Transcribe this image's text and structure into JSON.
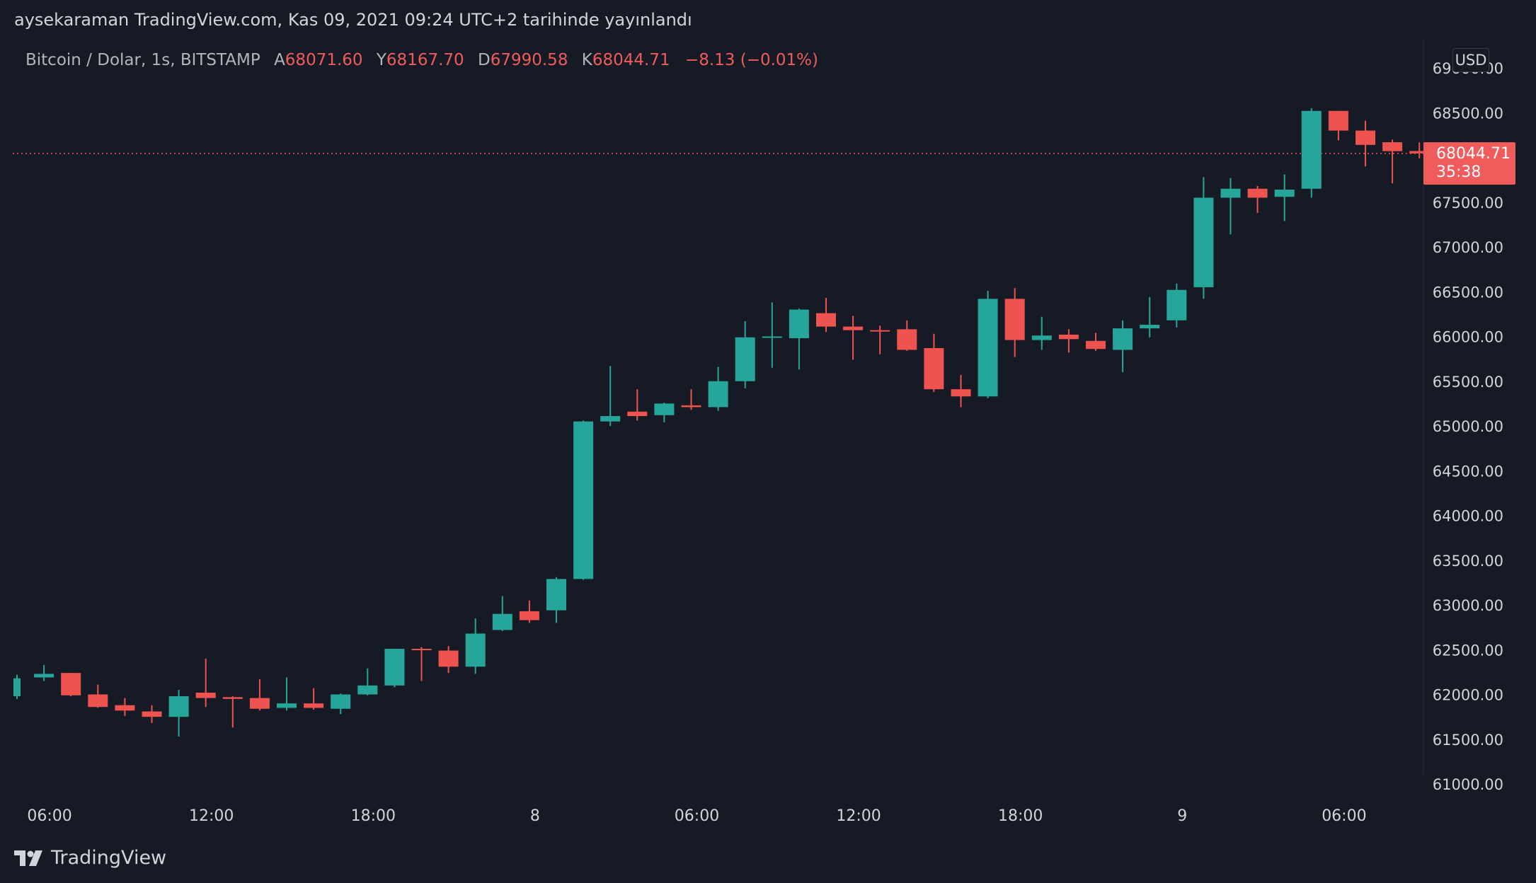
{
  "header": {
    "publish_line": "aysekaraman TradingView.com, Kas 09, 2021 09:24 UTC+2 tarihinde yayınlandı"
  },
  "legend": {
    "symbol": "Bitcoin / Dolar, 1s, BITSTAMP",
    "open_label": "A",
    "open_value": "68071.60",
    "high_label": "Y",
    "high_value": "68167.70",
    "low_label": "D",
    "low_value": "67990.58",
    "close_label": "K",
    "close_value": "68044.71",
    "change": "−8.13 (−0.01%)"
  },
  "price_axis": {
    "currency": "USD",
    "last_price": "68044.71",
    "countdown": "35:38"
  },
  "footer": {
    "brand": "TradingView"
  },
  "colors": {
    "up": "#26a69a",
    "down": "#ef5350",
    "background": "#161a25"
  },
  "chart_data": {
    "type": "candlestick",
    "ylim": [
      61000,
      69000
    ],
    "yticks": [
      "61000.00",
      "61500.00",
      "62000.00",
      "62500.00",
      "63000.00",
      "63500.00",
      "64000.00",
      "64500.00",
      "65000.00",
      "65500.00",
      "66000.00",
      "66500.00",
      "67000.00",
      "67500.00",
      "68000.00",
      "68500.00",
      "69000.00"
    ],
    "xticks": [
      {
        "label": "06:00",
        "index": 1
      },
      {
        "label": "12:00",
        "index": 7
      },
      {
        "label": "18:00",
        "index": 13
      },
      {
        "label": "8",
        "index": 19
      },
      {
        "label": "06:00",
        "index": 25
      },
      {
        "label": "12:00",
        "index": 31
      },
      {
        "label": "18:00",
        "index": 37
      },
      {
        "label": "9",
        "index": 43
      },
      {
        "label": "06:00",
        "index": 49
      }
    ],
    "last_price": 68044.71,
    "candles": [
      {
        "o": 61980,
        "h": 62220,
        "l": 61950,
        "c": 62180
      },
      {
        "o": 62190,
        "h": 62330,
        "l": 62150,
        "c": 62230
      },
      {
        "o": 62240,
        "h": 62240,
        "l": 61980,
        "c": 61990
      },
      {
        "o": 62000,
        "h": 62110,
        "l": 61850,
        "c": 61860
      },
      {
        "o": 61880,
        "h": 61960,
        "l": 61760,
        "c": 61820
      },
      {
        "o": 61810,
        "h": 61880,
        "l": 61680,
        "c": 61750
      },
      {
        "o": 61750,
        "h": 62050,
        "l": 61530,
        "c": 61980
      },
      {
        "o": 62020,
        "h": 62400,
        "l": 61860,
        "c": 61960
      },
      {
        "o": 61970,
        "h": 61980,
        "l": 61630,
        "c": 61950
      },
      {
        "o": 61960,
        "h": 62170,
        "l": 61820,
        "c": 61840
      },
      {
        "o": 61850,
        "h": 62190,
        "l": 61820,
        "c": 61900
      },
      {
        "o": 61900,
        "h": 62070,
        "l": 61830,
        "c": 61850
      },
      {
        "o": 61840,
        "h": 62010,
        "l": 61780,
        "c": 62000
      },
      {
        "o": 62000,
        "h": 62290,
        "l": 61990,
        "c": 62100
      },
      {
        "o": 62100,
        "h": 62510,
        "l": 62080,
        "c": 62510
      },
      {
        "o": 62510,
        "h": 62530,
        "l": 62150,
        "c": 62500
      },
      {
        "o": 62490,
        "h": 62540,
        "l": 62240,
        "c": 62310
      },
      {
        "o": 62310,
        "h": 62850,
        "l": 62230,
        "c": 62680
      },
      {
        "o": 62720,
        "h": 63100,
        "l": 62710,
        "c": 62900
      },
      {
        "o": 62930,
        "h": 63050,
        "l": 62800,
        "c": 62830
      },
      {
        "o": 62940,
        "h": 63310,
        "l": 62800,
        "c": 63290
      },
      {
        "o": 63290,
        "h": 65060,
        "l": 63280,
        "c": 65050
      },
      {
        "o": 65050,
        "h": 65670,
        "l": 65000,
        "c": 65110
      },
      {
        "o": 65160,
        "h": 65410,
        "l": 65060,
        "c": 65110
      },
      {
        "o": 65120,
        "h": 65260,
        "l": 65040,
        "c": 65250
      },
      {
        "o": 65230,
        "h": 65410,
        "l": 65180,
        "c": 65210
      },
      {
        "o": 65210,
        "h": 65660,
        "l": 65170,
        "c": 65500
      },
      {
        "o": 65500,
        "h": 66170,
        "l": 65420,
        "c": 65990
      },
      {
        "o": 65990,
        "h": 66380,
        "l": 65650,
        "c": 66000
      },
      {
        "o": 65980,
        "h": 66310,
        "l": 65630,
        "c": 66300
      },
      {
        "o": 66260,
        "h": 66430,
        "l": 66050,
        "c": 66110
      },
      {
        "o": 66110,
        "h": 66230,
        "l": 65740,
        "c": 66070
      },
      {
        "o": 66070,
        "h": 66120,
        "l": 65800,
        "c": 66060
      },
      {
        "o": 66080,
        "h": 66180,
        "l": 65840,
        "c": 65850
      },
      {
        "o": 65870,
        "h": 66030,
        "l": 65380,
        "c": 65410
      },
      {
        "o": 65410,
        "h": 65570,
        "l": 65210,
        "c": 65330
      },
      {
        "o": 65330,
        "h": 66510,
        "l": 65310,
        "c": 66420
      },
      {
        "o": 66420,
        "h": 66540,
        "l": 65770,
        "c": 65960
      },
      {
        "o": 65960,
        "h": 66220,
        "l": 65850,
        "c": 66010
      },
      {
        "o": 66020,
        "h": 66080,
        "l": 65820,
        "c": 65970
      },
      {
        "o": 65950,
        "h": 66040,
        "l": 65840,
        "c": 65860
      },
      {
        "o": 65850,
        "h": 66180,
        "l": 65600,
        "c": 66090
      },
      {
        "o": 66090,
        "h": 66440,
        "l": 65990,
        "c": 66130
      },
      {
        "o": 66180,
        "h": 66590,
        "l": 66100,
        "c": 66520
      },
      {
        "o": 66550,
        "h": 67780,
        "l": 66420,
        "c": 67550
      },
      {
        "o": 67550,
        "h": 67770,
        "l": 67140,
        "c": 67650
      },
      {
        "o": 67650,
        "h": 67680,
        "l": 67380,
        "c": 67550
      },
      {
        "o": 67560,
        "h": 67810,
        "l": 67290,
        "c": 67640
      },
      {
        "o": 67650,
        "h": 68550,
        "l": 67550,
        "c": 68520
      },
      {
        "o": 68520,
        "h": 68520,
        "l": 68190,
        "c": 68300
      },
      {
        "o": 68300,
        "h": 68410,
        "l": 67900,
        "c": 68140
      },
      {
        "o": 68170,
        "h": 68200,
        "l": 67710,
        "c": 68070
      },
      {
        "o": 68071.6,
        "h": 68167.7,
        "l": 67990.58,
        "c": 68044.71
      }
    ]
  }
}
